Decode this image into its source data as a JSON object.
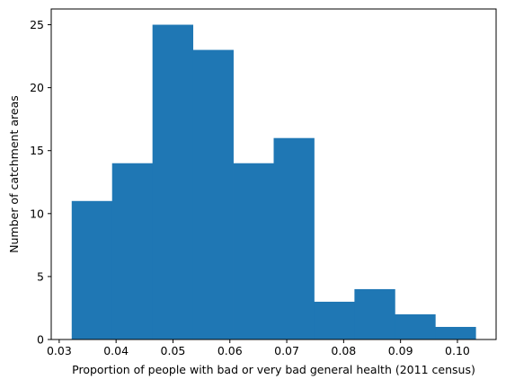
{
  "chart_data": {
    "type": "histogram",
    "title": "",
    "xlabel": "Proportion of people with bad or very bad general health (2011 census)",
    "ylabel": "Number of catchment areas",
    "bin_edges": [
      0.0322,
      0.0393,
      0.0464,
      0.0535,
      0.0606,
      0.0677,
      0.0748,
      0.0819,
      0.089,
      0.0961,
      0.1032
    ],
    "counts": [
      11,
      14,
      25,
      23,
      14,
      16,
      3,
      4,
      2,
      1
    ],
    "xlim": [
      0.0286,
      0.1068
    ],
    "ylim": [
      0,
      26.25
    ],
    "xticks": [
      0.03,
      0.04,
      0.05,
      0.06,
      0.07,
      0.08,
      0.09,
      0.1
    ],
    "xtick_labels": [
      "0.03",
      "0.04",
      "0.05",
      "0.06",
      "0.07",
      "0.08",
      "0.09",
      "0.10"
    ],
    "yticks": [
      0,
      5,
      10,
      15,
      20,
      25
    ],
    "ytick_labels": [
      "0",
      "5",
      "10",
      "15",
      "20",
      "25"
    ],
    "grid": false,
    "legend": "none",
    "bar_color": "#1f77b4"
  }
}
